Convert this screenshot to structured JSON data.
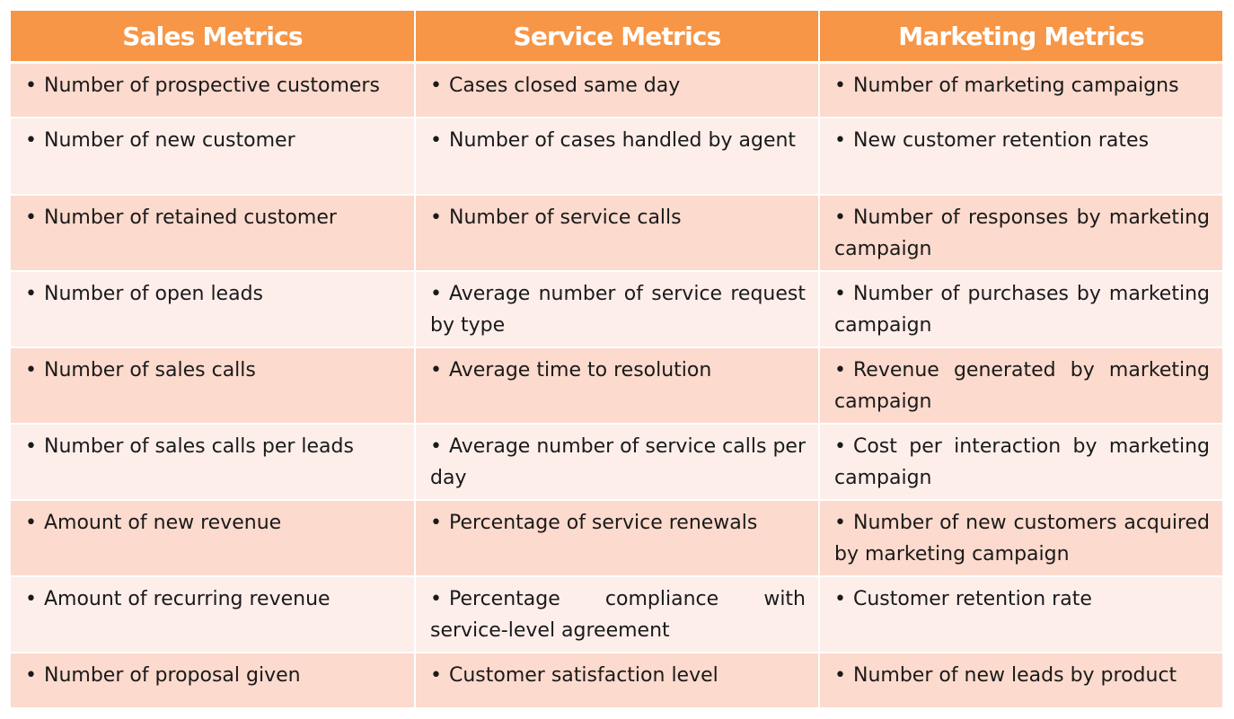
{
  "table": {
    "bullet": "•",
    "headers": [
      "Sales Metrics",
      "Service Metrics",
      "Marketing Metrics"
    ],
    "rows": [
      [
        "Number of prospective customers",
        "Cases closed same day",
        "Number of marketing campaigns"
      ],
      [
        "Number of new customer",
        "Number of cases handled by agent",
        "New customer retention rates"
      ],
      [
        "Number of retained customer",
        "Number of service calls",
        "Number of responses by marketing campaign"
      ],
      [
        "Number of open leads",
        "Average number of service request by type",
        "Number of purchases by marketing campaign"
      ],
      [
        "Number of sales calls",
        "Average time to resolution",
        "Revenue generated by marketing campaign"
      ],
      [
        "Number of sales calls per leads",
        "Average number of service calls per day",
        "Cost per interaction by marketing campaign"
      ],
      [
        "Amount of new revenue",
        "Percentage of service renewals",
        "Number of new customers acquired by marketing campaign"
      ],
      [
        "Amount of recurring revenue",
        "Percentage compliance with service-level agreement",
        "Customer retention rate"
      ],
      [
        "Number of proposal given",
        "Customer satisfaction level",
        "Number of new leads by product"
      ]
    ],
    "colors": {
      "header_bg": "#f79646",
      "header_text": "#ffffff",
      "row_dark": "#fcdacd",
      "row_light": "#fdeeea",
      "cell_text": "#1a1a1a"
    }
  }
}
